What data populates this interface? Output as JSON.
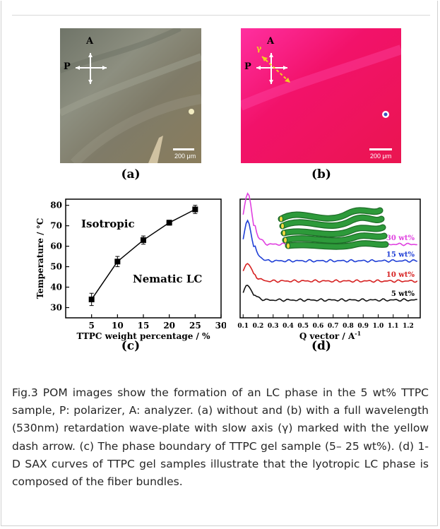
{
  "panels": {
    "a": {
      "label": "(a)",
      "scale_bar": "200 μm",
      "polarizer": "P",
      "analyzer": "A"
    },
    "b": {
      "label": "(b)",
      "scale_bar": "200 μm",
      "polarizer": "P",
      "analyzer": "A",
      "slow_axis": "γ"
    },
    "c": {
      "label": "(c)"
    },
    "d": {
      "label": "(d)"
    }
  },
  "colors": {
    "panel_a_background": "#8c8a78",
    "panel_b_background": "#f0156e",
    "crosshair": "#ffffff",
    "slow_axis_arrow": "#f2d021",
    "curve_30": "#e040e0",
    "curve_15": "#1f3fd6",
    "curve_10": "#d62020",
    "curve_5": "#111111",
    "fiber": "#2d9a3a"
  },
  "chart_data": [
    {
      "type": "scatter",
      "xlabel": "TTPC weight percentage / %",
      "ylabel": "Temperature / °C",
      "xlim": [
        0,
        30
      ],
      "ylim": [
        25,
        83
      ],
      "xticks": [
        5,
        10,
        15,
        20,
        25,
        30
      ],
      "yticks": [
        30,
        40,
        50,
        60,
        70,
        80
      ],
      "x": [
        5,
        10,
        15,
        20,
        25
      ],
      "y": [
        34,
        52.5,
        63,
        71.5,
        78
      ],
      "error": [
        3,
        2.5,
        2,
        1.2,
        2
      ],
      "annotations": [
        "Isotropic",
        "Nematic LC"
      ],
      "grid": false
    },
    {
      "type": "line",
      "xlabel": "Q vector / A",
      "xlabel_sup": "-1",
      "xlim": [
        0.08,
        1.28
      ],
      "xticks": [
        "0.1",
        "0.2",
        "0.3",
        "0.4",
        "0.5",
        "0.6",
        "0.7",
        "0.8",
        "0.9",
        "1.0",
        "1.1",
        "1.2"
      ],
      "series": [
        {
          "name": "30 wt%",
          "baseline": 0.62,
          "peak": 0.43
        },
        {
          "name": "15 wt%",
          "baseline": 0.48,
          "peak": 0.33
        },
        {
          "name": "10 wt%",
          "baseline": 0.31,
          "peak": 0.15
        },
        {
          "name": "5 wt%",
          "baseline": 0.15,
          "peak": 0.12
        }
      ]
    }
  ],
  "caption": "Fig.3 POM images show the formation of an LC phase in the 5 wt% TTPC sample, P: polarizer, A: analyzer. (a) without and (b) with a full wavelength (530nm) retardation wave-plate with slow axis (γ) marked with the yellow dash arrow. (c) The phase boundary of TTPC gel sample (5– 25 wt%). (d) 1-D SAX curves of TTPC gel samples illustrate that the lyotropic LC phase is composed of the fiber bundles."
}
